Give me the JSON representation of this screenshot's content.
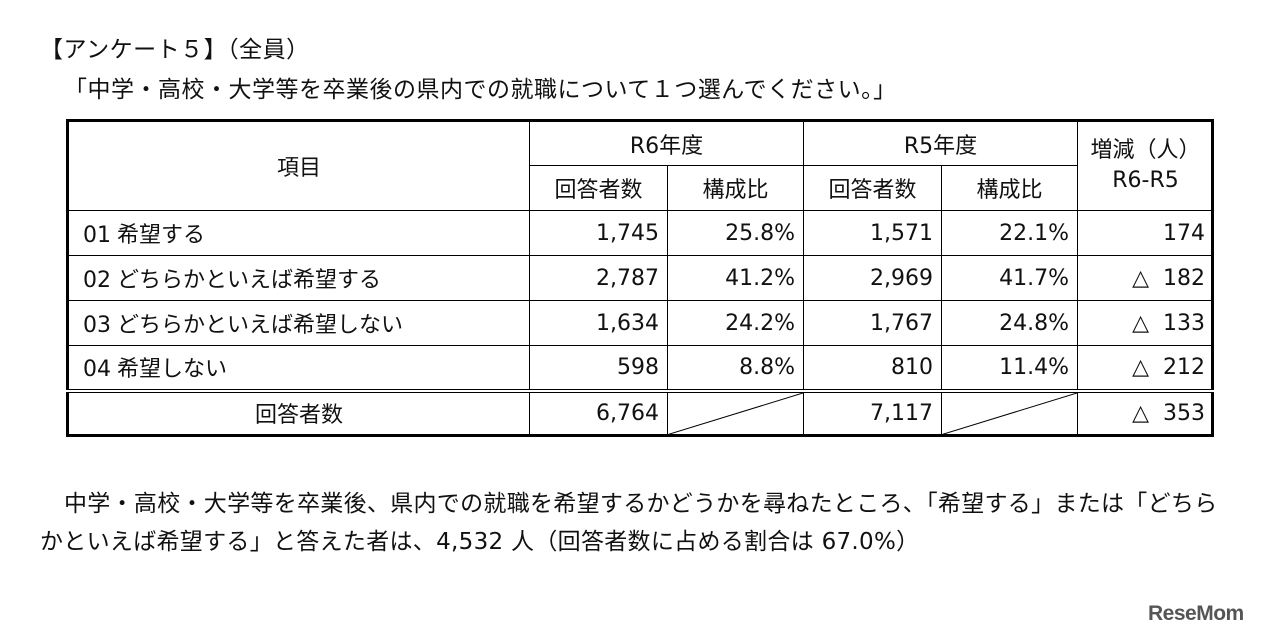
{
  "heading": "【アンケート５】（全員）",
  "question": "「中学・高校・大学等を卒業後の県内での就職について１つ選んでください。」",
  "table": {
    "col_item": "項目",
    "year_r6": "R6年度",
    "year_r5": "R5年度",
    "diff_line1": "増減（人）",
    "diff_line2": "R6-R5",
    "sub_respondents": "回答者数",
    "sub_ratio": "構成比",
    "rows": [
      {
        "code": "01",
        "label": "希望する",
        "r6_count": "1,745",
        "r6_ratio": "25.8%",
        "r5_count": "1,571",
        "r5_ratio": "22.1%",
        "diff_sign": "",
        "diff_value": "174"
      },
      {
        "code": "02",
        "label": "どちらかといえば希望する",
        "r6_count": "2,787",
        "r6_ratio": "41.2%",
        "r5_count": "2,969",
        "r5_ratio": "41.7%",
        "diff_sign": "△",
        "diff_value": "182"
      },
      {
        "code": "03",
        "label": "どちらかといえば希望しない",
        "r6_count": "1,634",
        "r6_ratio": "24.2%",
        "r5_count": "1,767",
        "r5_ratio": "24.8%",
        "diff_sign": "△",
        "diff_value": "133"
      },
      {
        "code": "04",
        "label": "希望しない",
        "r6_count": "598",
        "r6_ratio": "8.8%",
        "r5_count": "810",
        "r5_ratio": "11.4%",
        "diff_sign": "△",
        "diff_value": "212"
      }
    ],
    "total": {
      "label": "回答者数",
      "r6_count": "6,764",
      "r5_count": "7,117",
      "diff_sign": "△",
      "diff_value": "353"
    }
  },
  "summary": "中学・高校・大学等を卒業後、県内での就職を希望するかどうかを尋ねたところ、「希望する」または「どちらかといえば希望する」と答えた者は、4,532 人（回答者数に占める割合は 67.0%）",
  "logo": "ReseMom"
}
